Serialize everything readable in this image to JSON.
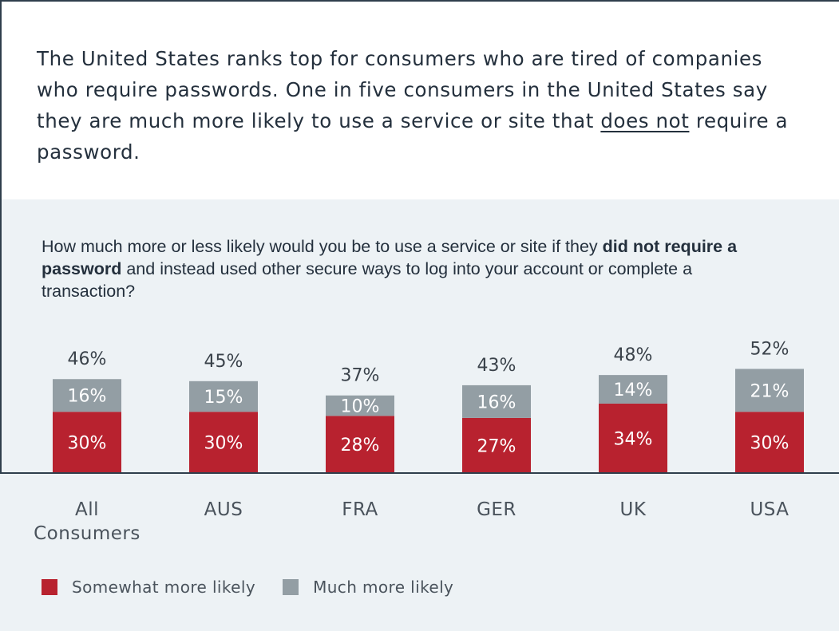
{
  "headline": {
    "part1": "The United States ranks top for consumers who are tired of companies who require passwords. One in five consumers in the United States say they are much more likely to use a service or site that ",
    "underlined": "does not",
    "part2": " require a password."
  },
  "question": {
    "part1": "How much more or less likely would you be to use a service or site if they ",
    "bold": "did not require a password",
    "part2": " and instead used other secure ways to log into your account or complete a transaction?"
  },
  "colors": {
    "somewhat": "#b8222f",
    "much": "#939ea4",
    "axis": "#2f3e4c",
    "label_dark": "#3a424a",
    "label_light": "#ffffff",
    "category": "#4a535c"
  },
  "chart_data": {
    "type": "bar",
    "stacked": true,
    "title": "How much more or less likely would you be to use a service or site if they did not require a password and instead used other secure ways to log into your account or complete a transaction?",
    "xlabel": "",
    "ylabel": "",
    "ylim": [
      0,
      60
    ],
    "grid": false,
    "legend_position": "bottom-left",
    "categories": [
      [
        "All",
        "Consumers"
      ],
      [
        "AUS"
      ],
      [
        "FRA"
      ],
      [
        "GER"
      ],
      [
        "UK"
      ],
      [
        "USA"
      ]
    ],
    "series": [
      {
        "name": "Somewhat more likely",
        "key": "somewhat",
        "values": [
          30,
          30,
          28,
          27,
          34,
          30
        ],
        "labels": [
          "30%",
          "30%",
          "28%",
          "27%",
          "34%",
          "30%"
        ]
      },
      {
        "name": "Much more likely",
        "key": "much",
        "values": [
          16,
          15,
          10,
          16,
          14,
          21
        ],
        "labels": [
          "16%",
          "15%",
          "10%",
          "16%",
          "14%",
          "21%"
        ]
      }
    ],
    "totals": [
      46,
      45,
      37,
      43,
      48,
      52
    ],
    "total_labels": [
      "46%",
      "45%",
      "37%",
      "43%",
      "48%",
      "52%"
    ]
  },
  "legend": [
    {
      "label": "Somewhat more likely",
      "key": "somewhat"
    },
    {
      "label": "Much more likely",
      "key": "much"
    }
  ]
}
